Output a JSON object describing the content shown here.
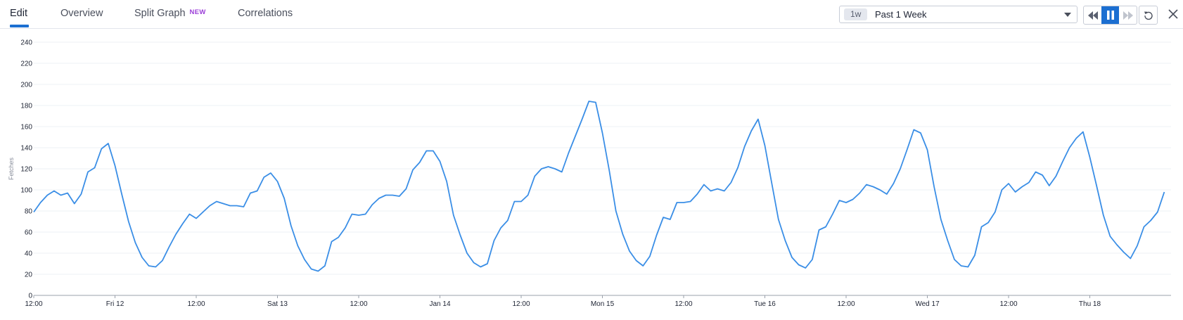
{
  "tabs": [
    {
      "label": "Edit",
      "active": true
    },
    {
      "label": "Overview"
    },
    {
      "label": "Split Graph",
      "badge": "NEW"
    },
    {
      "label": "Correlations"
    }
  ],
  "time_range": {
    "chip": "1w",
    "label": "Past 1 Week"
  },
  "colors": {
    "accent": "#1c6fd1",
    "series": "#3a8ee6",
    "badge": "#9b3ed8"
  },
  "icons": [
    "rewind-icon",
    "pause-icon",
    "fast-forward-icon",
    "reset-icon",
    "close-icon"
  ],
  "chart_data": {
    "type": "line",
    "ylabel": "Fetches",
    "ylim": [
      0,
      240
    ],
    "yticks": [
      0,
      20,
      40,
      60,
      80,
      100,
      120,
      140,
      160,
      180,
      200,
      220,
      240
    ],
    "xlim": [
      0,
      168
    ],
    "x_unit": "hours from first tick (Thu 11 12:00)",
    "xticks": [
      {
        "x": 0,
        "label": "12:00"
      },
      {
        "x": 12,
        "label": "Fri 12"
      },
      {
        "x": 24,
        "label": "12:00"
      },
      {
        "x": 36,
        "label": "Sat 13"
      },
      {
        "x": 48,
        "label": "12:00"
      },
      {
        "x": 60,
        "label": "Jan 14"
      },
      {
        "x": 72,
        "label": "12:00"
      },
      {
        "x": 84,
        "label": "Mon 15"
      },
      {
        "x": 96,
        "label": "12:00"
      },
      {
        "x": 108,
        "label": "Tue 16"
      },
      {
        "x": 120,
        "label": "12:00"
      },
      {
        "x": 132,
        "label": "Wed 17"
      },
      {
        "x": 144,
        "label": "12:00"
      },
      {
        "x": 156,
        "label": "Thu 18"
      }
    ],
    "grid": true,
    "series": [
      {
        "values": [
          [
            0,
            79
          ],
          [
            1,
            88
          ],
          [
            2,
            95
          ],
          [
            3,
            99
          ],
          [
            4,
            95
          ],
          [
            5,
            97
          ],
          [
            6,
            87
          ],
          [
            7,
            96
          ],
          [
            8,
            117
          ],
          [
            9,
            121
          ],
          [
            10,
            139
          ],
          [
            11,
            144
          ],
          [
            12,
            123
          ],
          [
            13,
            96
          ],
          [
            14,
            70
          ],
          [
            15,
            50
          ],
          [
            16,
            36
          ],
          [
            17,
            28
          ],
          [
            18,
            27
          ],
          [
            19,
            33
          ],
          [
            20,
            46
          ],
          [
            21,
            58
          ],
          [
            22,
            68
          ],
          [
            23,
            77
          ],
          [
            24,
            73
          ],
          [
            25,
            79
          ],
          [
            26,
            85
          ],
          [
            27,
            89
          ],
          [
            28,
            87
          ],
          [
            29,
            85
          ],
          [
            30,
            85
          ],
          [
            31,
            84
          ],
          [
            32,
            97
          ],
          [
            33,
            99
          ],
          [
            34,
            112
          ],
          [
            35,
            116
          ],
          [
            36,
            108
          ],
          [
            37,
            92
          ],
          [
            38,
            66
          ],
          [
            39,
            47
          ],
          [
            40,
            34
          ],
          [
            41,
            25
          ],
          [
            42,
            23
          ],
          [
            43,
            28
          ],
          [
            44,
            51
          ],
          [
            45,
            55
          ],
          [
            46,
            64
          ],
          [
            47,
            77
          ],
          [
            48,
            76
          ],
          [
            49,
            77
          ],
          [
            50,
            86
          ],
          [
            51,
            92
          ],
          [
            52,
            95
          ],
          [
            53,
            95
          ],
          [
            54,
            94
          ],
          [
            55,
            101
          ],
          [
            56,
            119
          ],
          [
            57,
            126
          ],
          [
            58,
            137
          ],
          [
            59,
            137
          ],
          [
            60,
            127
          ],
          [
            61,
            108
          ],
          [
            62,
            76
          ],
          [
            63,
            57
          ],
          [
            64,
            40
          ],
          [
            65,
            31
          ],
          [
            66,
            27
          ],
          [
            67,
            30
          ],
          [
            68,
            52
          ],
          [
            69,
            64
          ],
          [
            70,
            71
          ],
          [
            71,
            89
          ],
          [
            72,
            89
          ],
          [
            73,
            95
          ],
          [
            74,
            113
          ],
          [
            75,
            120
          ],
          [
            76,
            122
          ],
          [
            77,
            120
          ],
          [
            78,
            117
          ],
          [
            79,
            135
          ],
          [
            80,
            151
          ],
          [
            81,
            167
          ],
          [
            82,
            184
          ],
          [
            83,
            183
          ],
          [
            84,
            154
          ],
          [
            85,
            119
          ],
          [
            86,
            80
          ],
          [
            87,
            58
          ],
          [
            88,
            42
          ],
          [
            89,
            33
          ],
          [
            90,
            28
          ],
          [
            91,
            37
          ],
          [
            92,
            57
          ],
          [
            93,
            74
          ],
          [
            94,
            72
          ],
          [
            95,
            88
          ],
          [
            96,
            88
          ],
          [
            97,
            89
          ],
          [
            98,
            96
          ],
          [
            99,
            105
          ],
          [
            100,
            99
          ],
          [
            101,
            101
          ],
          [
            102,
            99
          ],
          [
            103,
            107
          ],
          [
            104,
            121
          ],
          [
            105,
            141
          ],
          [
            106,
            156
          ],
          [
            107,
            167
          ],
          [
            108,
            142
          ],
          [
            109,
            107
          ],
          [
            110,
            72
          ],
          [
            111,
            52
          ],
          [
            112,
            36
          ],
          [
            113,
            29
          ],
          [
            114,
            26
          ],
          [
            115,
            34
          ],
          [
            116,
            62
          ],
          [
            117,
            65
          ],
          [
            118,
            77
          ],
          [
            119,
            90
          ],
          [
            120,
            88
          ],
          [
            121,
            91
          ],
          [
            122,
            97
          ],
          [
            123,
            105
          ],
          [
            124,
            103
          ],
          [
            125,
            100
          ],
          [
            126,
            96
          ],
          [
            127,
            106
          ],
          [
            128,
            120
          ],
          [
            129,
            138
          ],
          [
            130,
            157
          ],
          [
            131,
            154
          ],
          [
            132,
            138
          ],
          [
            133,
            103
          ],
          [
            134,
            72
          ],
          [
            135,
            52
          ],
          [
            136,
            34
          ],
          [
            137,
            28
          ],
          [
            138,
            27
          ],
          [
            139,
            38
          ],
          [
            140,
            65
          ],
          [
            141,
            69
          ],
          [
            142,
            79
          ],
          [
            143,
            100
          ],
          [
            144,
            106
          ],
          [
            145,
            98
          ],
          [
            146,
            103
          ],
          [
            147,
            107
          ],
          [
            148,
            117
          ],
          [
            149,
            114
          ],
          [
            150,
            104
          ],
          [
            151,
            113
          ],
          [
            152,
            127
          ],
          [
            153,
            140
          ],
          [
            154,
            149
          ],
          [
            155,
            155
          ],
          [
            156,
            131
          ],
          [
            157,
            104
          ],
          [
            158,
            76
          ],
          [
            159,
            56
          ],
          [
            160,
            48
          ],
          [
            161,
            41
          ],
          [
            162,
            35
          ],
          [
            163,
            47
          ],
          [
            164,
            65
          ],
          [
            165,
            71
          ],
          [
            166,
            79
          ],
          [
            167,
            98
          ]
        ]
      }
    ]
  }
}
